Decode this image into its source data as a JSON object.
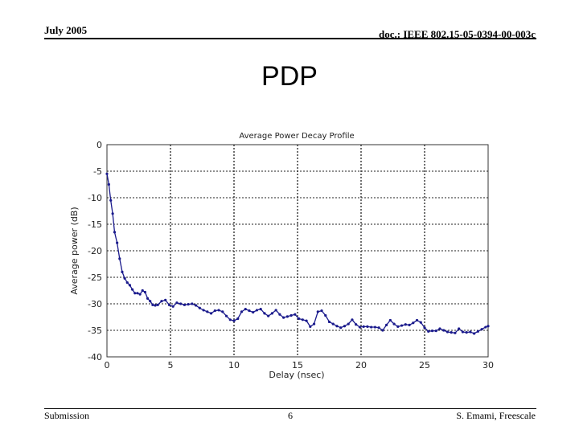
{
  "header": {
    "date": "July 2005",
    "doc_id": "doc.: IEEE 802.15-05-0394-00-003c"
  },
  "slide": {
    "title": "PDP"
  },
  "footer": {
    "left": "Submission",
    "page": "6",
    "right": "S. Emami, Freescale"
  },
  "chart_data": {
    "type": "line",
    "title": "Average Power Decay Profile",
    "xlabel": "Delay (nsec)",
    "ylabel": "Average power (dB)",
    "xlim": [
      0,
      30
    ],
    "ylim": [
      -40,
      0
    ],
    "xticks": [
      "0",
      "5",
      "10",
      "15",
      "20",
      "25",
      "30"
    ],
    "yticks": [
      "0",
      "-5",
      "-10",
      "-15",
      "-20",
      "-25",
      "-30",
      "-35",
      "-40"
    ],
    "grid": true,
    "color": "#1a1a8c",
    "series": [
      {
        "x": [
          0,
          0.15,
          0.3,
          0.45,
          0.6,
          0.8,
          1.0,
          1.2,
          1.4,
          1.6,
          1.8,
          2.0,
          2.2,
          2.4,
          2.6,
          2.8,
          3.0,
          3.2,
          3.4,
          3.6,
          3.8,
          4.0,
          4.3,
          4.6,
          4.9,
          5.2,
          5.5,
          5.8,
          6.1,
          6.4,
          6.7,
          7.0,
          7.3,
          7.6,
          7.9,
          8.2,
          8.5,
          8.8,
          9.1,
          9.4,
          9.7,
          10.0,
          10.3,
          10.6,
          10.9,
          11.2,
          11.5,
          11.8,
          12.1,
          12.4,
          12.7,
          13.0,
          13.3,
          13.6,
          13.9,
          14.2,
          14.5,
          14.8,
          15.1,
          15.4,
          15.7,
          16.0,
          16.3,
          16.6,
          16.9,
          17.2,
          17.5,
          17.8,
          18.1,
          18.4,
          18.7,
          19.0,
          19.3,
          19.6,
          19.9,
          20.2,
          20.5,
          20.8,
          21.1,
          21.4,
          21.7,
          22.0,
          22.3,
          22.6,
          22.9,
          23.2,
          23.5,
          23.8,
          24.1,
          24.4,
          24.7,
          25.0,
          25.3,
          25.6,
          25.9,
          26.2,
          26.5,
          26.8,
          27.1,
          27.4,
          27.7,
          28.0,
          28.3,
          28.6,
          28.9,
          29.2,
          29.5,
          29.8,
          30.0
        ],
        "y": [
          -5.5,
          -7.5,
          -10.5,
          -13,
          -16.5,
          -18.5,
          -21.5,
          -24,
          -25.2,
          -26,
          -26.5,
          -27.3,
          -28,
          -28,
          -28.2,
          -27.5,
          -27.8,
          -29,
          -29.5,
          -30.2,
          -30.3,
          -30.2,
          -29.5,
          -29.3,
          -30.2,
          -30.5,
          -29.8,
          -30,
          -30.2,
          -30.1,
          -30,
          -30.3,
          -30.8,
          -31.2,
          -31.5,
          -31.8,
          -31.3,
          -31.2,
          -31.5,
          -32.3,
          -33,
          -33.2,
          -32.8,
          -31.5,
          -31,
          -31.3,
          -31.6,
          -31.2,
          -31,
          -31.8,
          -32.3,
          -31.8,
          -31.2,
          -32,
          -32.6,
          -32.4,
          -32.2,
          -32,
          -32.8,
          -33,
          -33.2,
          -34.3,
          -33.8,
          -31.5,
          -31.3,
          -32.2,
          -33.4,
          -33.8,
          -34.2,
          -34.5,
          -34.2,
          -33.8,
          -33,
          -33.9,
          -34.4,
          -34.3,
          -34.3,
          -34.4,
          -34.4,
          -34.5,
          -35,
          -34,
          -33.1,
          -33.8,
          -34.3,
          -34.1,
          -33.9,
          -34,
          -33.6,
          -33.1,
          -33.5,
          -34.5,
          -35.2,
          -35.1,
          -35.1,
          -34.7,
          -35,
          -35.3,
          -35.4,
          -35.5,
          -34.7,
          -35.3,
          -35.4,
          -35.3,
          -35.6,
          -35.2,
          -34.8,
          -34.4,
          -34.2
        ]
      }
    ]
  }
}
